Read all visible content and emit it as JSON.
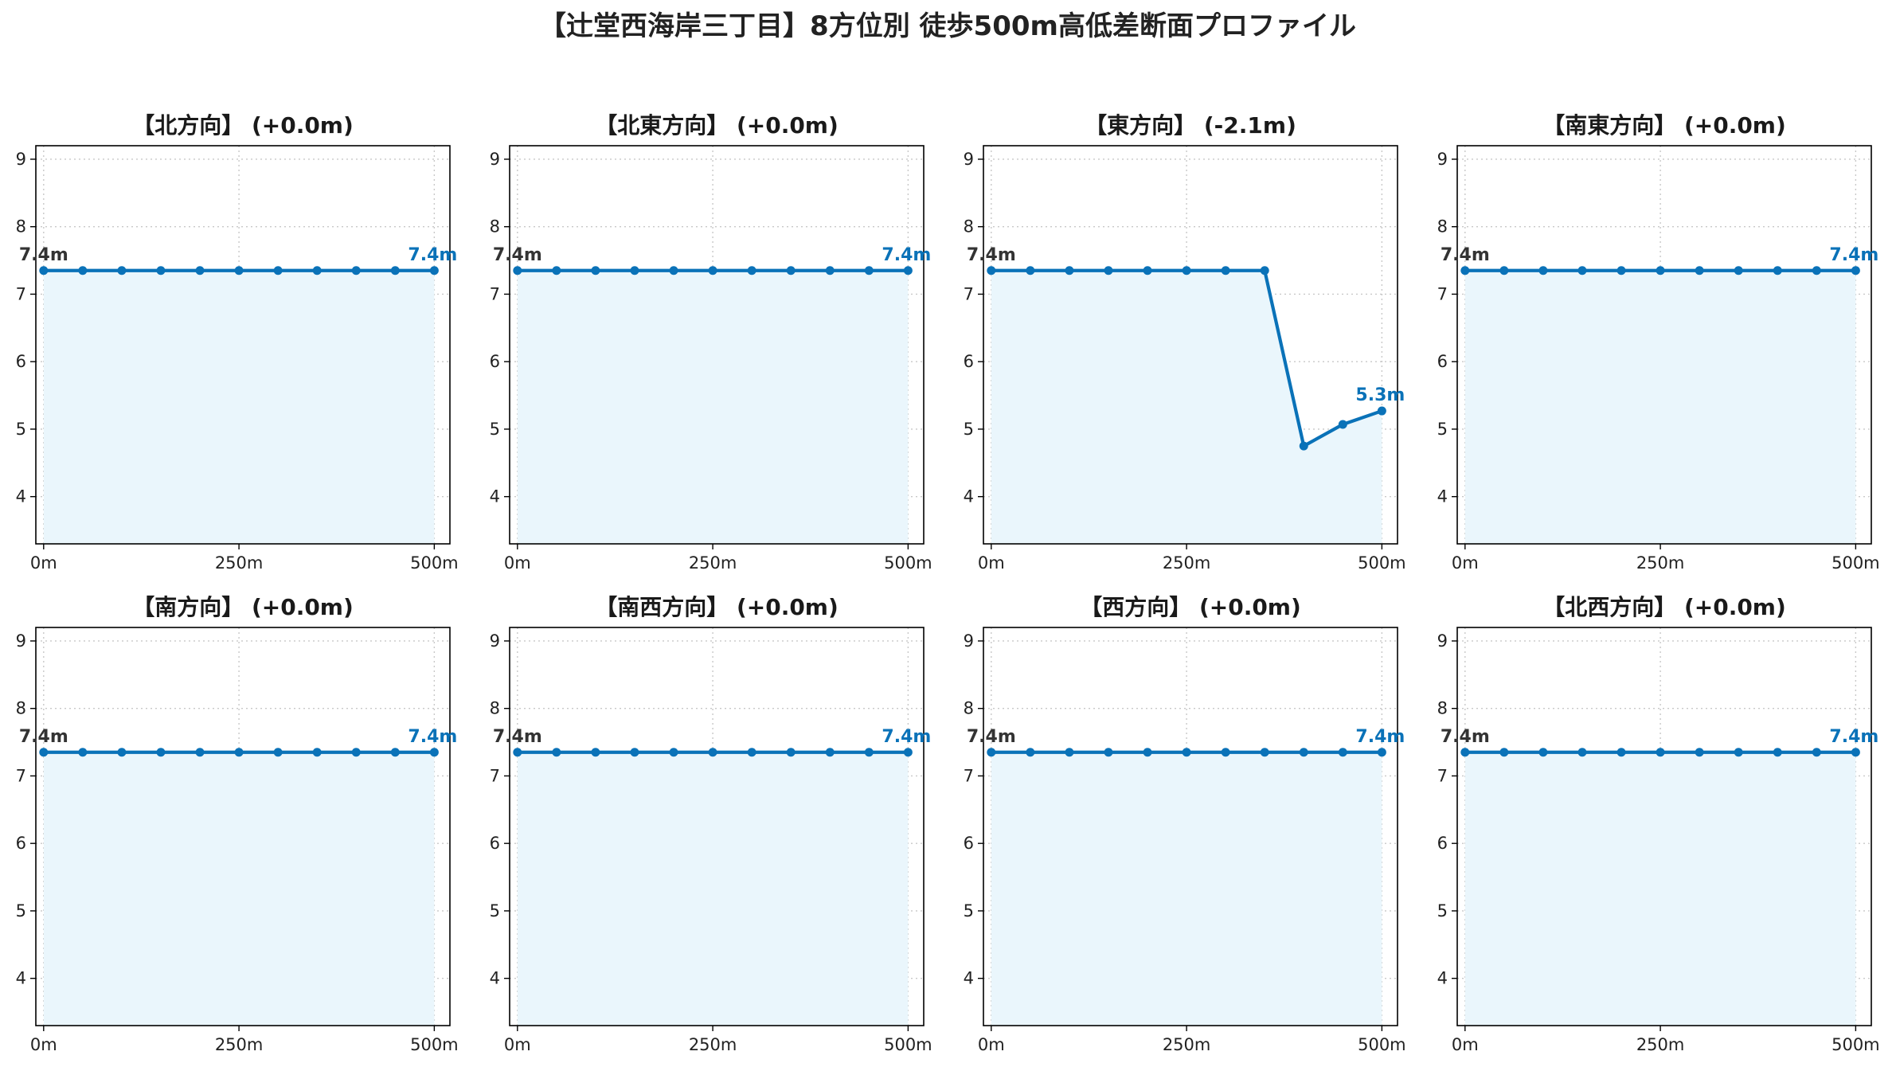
{
  "title": "【辻堂西海岸三丁目】8方位別 徒歩500m高低差断面プロファイル",
  "colors": {
    "line": "#0a72b8",
    "fill": "#eaf6fc",
    "grid": "#c8c8c8",
    "start_label": "#333333",
    "end_label": "#0a72b8"
  },
  "chart_data": [
    {
      "type": "area",
      "title": "【北方向】 (+0.0m)",
      "x": [
        0,
        50,
        100,
        150,
        200,
        250,
        300,
        350,
        400,
        450,
        500
      ],
      "y": [
        7.35,
        7.35,
        7.35,
        7.35,
        7.35,
        7.35,
        7.35,
        7.35,
        7.35,
        7.35,
        7.35
      ],
      "xlim": [
        -10,
        520
      ],
      "ylim": [
        3.3,
        9.2
      ],
      "xticks": [
        0,
        250,
        500
      ],
      "xtick_labels": [
        "0m",
        "250m",
        "500m"
      ],
      "yticks": [
        4,
        5,
        6,
        7,
        8,
        9
      ],
      "ytick_labels": [
        "4",
        "5",
        "6",
        "7",
        "8",
        "9"
      ],
      "start_label": "7.4m",
      "end_label": "7.4m",
      "grid": true
    },
    {
      "type": "area",
      "title": "【北東方向】 (+0.0m)",
      "x": [
        0,
        50,
        100,
        150,
        200,
        250,
        300,
        350,
        400,
        450,
        500
      ],
      "y": [
        7.35,
        7.35,
        7.35,
        7.35,
        7.35,
        7.35,
        7.35,
        7.35,
        7.35,
        7.35,
        7.35
      ],
      "xlim": [
        -10,
        520
      ],
      "ylim": [
        3.3,
        9.2
      ],
      "xticks": [
        0,
        250,
        500
      ],
      "xtick_labels": [
        "0m",
        "250m",
        "500m"
      ],
      "yticks": [
        4,
        5,
        6,
        7,
        8,
        9
      ],
      "ytick_labels": [
        "4",
        "5",
        "6",
        "7",
        "8",
        "9"
      ],
      "start_label": "7.4m",
      "end_label": "7.4m",
      "grid": true
    },
    {
      "type": "area",
      "title": "【東方向】 (-2.1m)",
      "x": [
        0,
        50,
        100,
        150,
        200,
        250,
        300,
        350,
        400,
        450,
        500
      ],
      "y": [
        7.35,
        7.35,
        7.35,
        7.35,
        7.35,
        7.35,
        7.35,
        7.35,
        4.75,
        5.07,
        5.27
      ],
      "xlim": [
        -10,
        520
      ],
      "ylim": [
        3.3,
        9.2
      ],
      "xticks": [
        0,
        250,
        500
      ],
      "xtick_labels": [
        "0m",
        "250m",
        "500m"
      ],
      "yticks": [
        4,
        5,
        6,
        7,
        8,
        9
      ],
      "ytick_labels": [
        "4",
        "5",
        "6",
        "7",
        "8",
        "9"
      ],
      "start_label": "7.4m",
      "end_label": "5.3m",
      "grid": true
    },
    {
      "type": "area",
      "title": "【南東方向】 (+0.0m)",
      "x": [
        0,
        50,
        100,
        150,
        200,
        250,
        300,
        350,
        400,
        450,
        500
      ],
      "y": [
        7.35,
        7.35,
        7.35,
        7.35,
        7.35,
        7.35,
        7.35,
        7.35,
        7.35,
        7.35,
        7.35
      ],
      "xlim": [
        -10,
        520
      ],
      "ylim": [
        3.3,
        9.2
      ],
      "xticks": [
        0,
        250,
        500
      ],
      "xtick_labels": [
        "0m",
        "250m",
        "500m"
      ],
      "yticks": [
        4,
        5,
        6,
        7,
        8,
        9
      ],
      "ytick_labels": [
        "4",
        "5",
        "6",
        "7",
        "8",
        "9"
      ],
      "start_label": "7.4m",
      "end_label": "7.4m",
      "grid": true
    },
    {
      "type": "area",
      "title": "【南方向】 (+0.0m)",
      "x": [
        0,
        50,
        100,
        150,
        200,
        250,
        300,
        350,
        400,
        450,
        500
      ],
      "y": [
        7.35,
        7.35,
        7.35,
        7.35,
        7.35,
        7.35,
        7.35,
        7.35,
        7.35,
        7.35,
        7.35
      ],
      "xlim": [
        -10,
        520
      ],
      "ylim": [
        3.3,
        9.2
      ],
      "xticks": [
        0,
        250,
        500
      ],
      "xtick_labels": [
        "0m",
        "250m",
        "500m"
      ],
      "yticks": [
        4,
        5,
        6,
        7,
        8,
        9
      ],
      "ytick_labels": [
        "4",
        "5",
        "6",
        "7",
        "8",
        "9"
      ],
      "start_label": "7.4m",
      "end_label": "7.4m",
      "grid": true
    },
    {
      "type": "area",
      "title": "【南西方向】 (+0.0m)",
      "x": [
        0,
        50,
        100,
        150,
        200,
        250,
        300,
        350,
        400,
        450,
        500
      ],
      "y": [
        7.35,
        7.35,
        7.35,
        7.35,
        7.35,
        7.35,
        7.35,
        7.35,
        7.35,
        7.35,
        7.35
      ],
      "xlim": [
        -10,
        520
      ],
      "ylim": [
        3.3,
        9.2
      ],
      "xticks": [
        0,
        250,
        500
      ],
      "xtick_labels": [
        "0m",
        "250m",
        "500m"
      ],
      "yticks": [
        4,
        5,
        6,
        7,
        8,
        9
      ],
      "ytick_labels": [
        "4",
        "5",
        "6",
        "7",
        "8",
        "9"
      ],
      "start_label": "7.4m",
      "end_label": "7.4m",
      "grid": true
    },
    {
      "type": "area",
      "title": "【西方向】 (+0.0m)",
      "x": [
        0,
        50,
        100,
        150,
        200,
        250,
        300,
        350,
        400,
        450,
        500
      ],
      "y": [
        7.35,
        7.35,
        7.35,
        7.35,
        7.35,
        7.35,
        7.35,
        7.35,
        7.35,
        7.35,
        7.35
      ],
      "xlim": [
        -10,
        520
      ],
      "ylim": [
        3.3,
        9.2
      ],
      "xticks": [
        0,
        250,
        500
      ],
      "xtick_labels": [
        "0m",
        "250m",
        "500m"
      ],
      "yticks": [
        4,
        5,
        6,
        7,
        8,
        9
      ],
      "ytick_labels": [
        "4",
        "5",
        "6",
        "7",
        "8",
        "9"
      ],
      "start_label": "7.4m",
      "end_label": "7.4m",
      "grid": true
    },
    {
      "type": "area",
      "title": "【北西方向】 (+0.0m)",
      "x": [
        0,
        50,
        100,
        150,
        200,
        250,
        300,
        350,
        400,
        450,
        500
      ],
      "y": [
        7.35,
        7.35,
        7.35,
        7.35,
        7.35,
        7.35,
        7.35,
        7.35,
        7.35,
        7.35,
        7.35
      ],
      "xlim": [
        -10,
        520
      ],
      "ylim": [
        3.3,
        9.2
      ],
      "xticks": [
        0,
        250,
        500
      ],
      "xtick_labels": [
        "0m",
        "250m",
        "500m"
      ],
      "yticks": [
        4,
        5,
        6,
        7,
        8,
        9
      ],
      "ytick_labels": [
        "4",
        "5",
        "6",
        "7",
        "8",
        "9"
      ],
      "start_label": "7.4m",
      "end_label": "7.4m",
      "grid": true
    }
  ]
}
